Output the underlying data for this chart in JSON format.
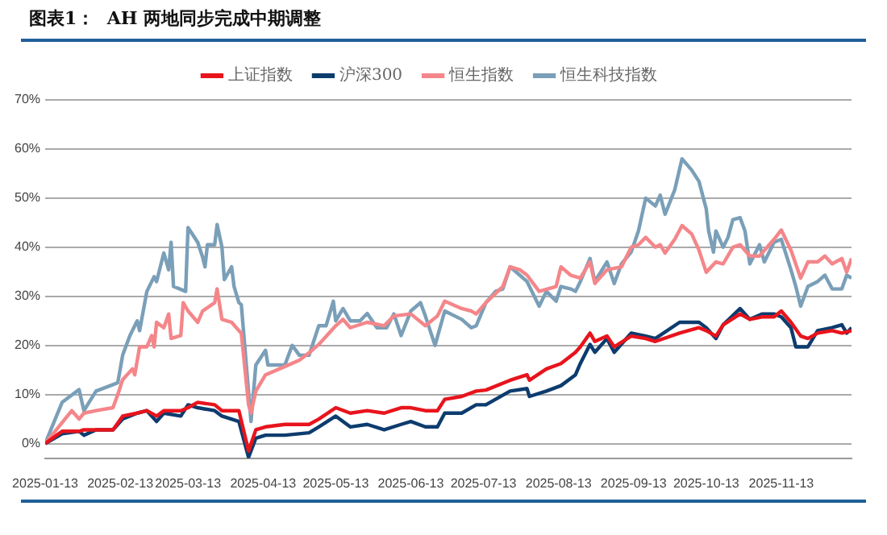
{
  "chart_data": {
    "type": "line",
    "title": "图表1：  AH 两地同步完成中期调整",
    "xlim": [
      "2025-01-13",
      "2025-12-12"
    ],
    "xticks": [
      "2025-01-13",
      "2025-02-13",
      "2025-03-13",
      "2025-04-13",
      "2025-05-13",
      "2025-06-13",
      "2025-07-13",
      "2025-08-13",
      "2025-09-13",
      "2025-10-13",
      "2025-11-13"
    ],
    "ylim": [
      -3,
      70
    ],
    "yticks": [
      {
        "value": 0,
        "label": "0%"
      },
      {
        "value": 10,
        "label": "10%"
      },
      {
        "value": 20,
        "label": "20%"
      },
      {
        "value": 30,
        "label": "30%"
      },
      {
        "value": 40,
        "label": "40%"
      },
      {
        "value": 50,
        "label": "50%"
      },
      {
        "value": 60,
        "label": "60%"
      },
      {
        "value": 70,
        "label": "70%"
      }
    ],
    "grid": "y",
    "legend": "top",
    "marker": "none",
    "line_style": "solid",
    "series": [
      {
        "name": "上证指数",
        "color": "#e8141c",
        "x": [
          "2025-01-13",
          "2025-01-20",
          "2025-01-27",
          "2025-01-29",
          "2025-02-03",
          "2025-02-10",
          "2025-02-14",
          "2025-02-20",
          "2025-02-24",
          "2025-02-28",
          "2025-03-03",
          "2025-03-10",
          "2025-03-13",
          "2025-03-17",
          "2025-03-24",
          "2025-03-27",
          "2025-04-03",
          "2025-04-07",
          "2025-04-10",
          "2025-04-14",
          "2025-04-22",
          "2025-05-02",
          "2025-05-06",
          "2025-05-13",
          "2025-05-19",
          "2025-05-26",
          "2025-06-02",
          "2025-06-09",
          "2025-06-13",
          "2025-06-19",
          "2025-06-24",
          "2025-06-27",
          "2025-07-04",
          "2025-07-10",
          "2025-07-14",
          "2025-07-24",
          "2025-07-31",
          "2025-08-01",
          "2025-08-08",
          "2025-08-14",
          "2025-08-20",
          "2025-08-22",
          "2025-08-26",
          "2025-08-28",
          "2025-09-02",
          "2025-09-05",
          "2025-09-12",
          "2025-09-18",
          "2025-09-22",
          "2025-10-02",
          "2025-10-10",
          "2025-10-13",
          "2025-10-17",
          "2025-10-20",
          "2025-10-27",
          "2025-10-31",
          "2025-11-05",
          "2025-11-10",
          "2025-11-13",
          "2025-11-17",
          "2025-11-21",
          "2025-11-24",
          "2025-11-28",
          "2025-12-04",
          "2025-12-08",
          "2025-12-12"
        ],
        "values": [
          0,
          2.5,
          2.5,
          2.8,
          2.8,
          2.8,
          5.6,
          6.2,
          6.7,
          5.6,
          6.7,
          6.7,
          7.3,
          8.4,
          7.9,
          6.7,
          6.7,
          -1.5,
          2.8,
          3.4,
          3.9,
          3.9,
          5,
          7.3,
          6.2,
          6.7,
          6.2,
          7.3,
          7.3,
          6.7,
          6.7,
          9,
          9.6,
          10.7,
          10.9,
          12.9,
          14,
          12.9,
          15.2,
          16.3,
          18.6,
          19.7,
          22.5,
          20.8,
          21.9,
          19.7,
          21.9,
          21.4,
          20.8,
          22.5,
          23.6,
          23,
          21.9,
          24.2,
          26.4,
          25.3,
          25.8,
          25.8,
          27,
          24.7,
          21.9,
          21.4,
          22.5,
          23,
          22.5,
          23
        ]
      },
      {
        "name": "沪深300",
        "color": "#0d3c6e",
        "x": [
          "2025-01-13",
          "2025-01-20",
          "2025-01-27",
          "2025-01-29",
          "2025-02-03",
          "2025-02-10",
          "2025-02-14",
          "2025-02-20",
          "2025-02-24",
          "2025-02-28",
          "2025-03-03",
          "2025-03-10",
          "2025-03-13",
          "2025-03-17",
          "2025-03-24",
          "2025-03-27",
          "2025-04-03",
          "2025-04-07",
          "2025-04-10",
          "2025-04-14",
          "2025-04-22",
          "2025-05-02",
          "2025-05-06",
          "2025-05-13",
          "2025-05-19",
          "2025-05-26",
          "2025-06-02",
          "2025-06-09",
          "2025-06-13",
          "2025-06-19",
          "2025-06-24",
          "2025-06-27",
          "2025-07-04",
          "2025-07-10",
          "2025-07-14",
          "2025-07-24",
          "2025-07-31",
          "2025-08-01",
          "2025-08-08",
          "2025-08-14",
          "2025-08-20",
          "2025-08-22",
          "2025-08-26",
          "2025-08-28",
          "2025-09-02",
          "2025-09-05",
          "2025-09-12",
          "2025-09-18",
          "2025-09-22",
          "2025-10-02",
          "2025-10-10",
          "2025-10-13",
          "2025-10-17",
          "2025-10-20",
          "2025-10-27",
          "2025-10-31",
          "2025-11-05",
          "2025-11-10",
          "2025-11-13",
          "2025-11-17",
          "2025-11-19",
          "2025-11-24",
          "2025-11-28",
          "2025-12-04",
          "2025-12-08",
          "2025-12-10",
          "2025-12-12"
        ],
        "values": [
          0,
          2,
          2.5,
          1.7,
          2.8,
          2.8,
          5,
          6.2,
          6.7,
          4.5,
          6.2,
          5.6,
          7.9,
          7.3,
          6.7,
          5.6,
          4.5,
          -2.8,
          1.1,
          1.7,
          1.7,
          2.2,
          3.4,
          5.6,
          3.4,
          3.9,
          2.8,
          3.9,
          4.5,
          3.4,
          3.4,
          6.2,
          6.2,
          7.9,
          7.9,
          10.7,
          11.2,
          9.6,
          10.7,
          11.8,
          14,
          16.3,
          20.2,
          18.6,
          21.4,
          18.6,
          22.5,
          21.9,
          21.4,
          24.7,
          24.7,
          23.6,
          21.4,
          24.2,
          27.5,
          25.3,
          26.4,
          26.4,
          25.8,
          23.6,
          19.7,
          19.7,
          23,
          23.6,
          24.2,
          22.5,
          23.6
        ]
      },
      {
        "name": "恒生指数",
        "color": "#f4868a",
        "x": [
          "2025-01-13",
          "2025-01-24",
          "2025-01-27",
          "2025-01-29",
          "2025-02-03",
          "2025-02-10",
          "2025-02-12",
          "2025-02-14",
          "2025-02-18",
          "2025-02-19",
          "2025-02-21",
          "2025-02-24",
          "2025-02-26",
          "2025-02-27",
          "2025-02-28",
          "2025-03-03",
          "2025-03-05",
          "2025-03-06",
          "2025-03-10",
          "2025-03-11",
          "2025-03-13",
          "2025-03-17",
          "2025-03-19",
          "2025-03-24",
          "2025-03-25",
          "2025-03-27",
          "2025-03-31",
          "2025-04-03",
          "2025-04-04",
          "2025-04-07",
          "2025-04-08",
          "2025-04-10",
          "2025-04-14",
          "2025-04-22",
          "2025-04-28",
          "2025-05-02",
          "2025-05-06",
          "2025-05-13",
          "2025-05-16",
          "2025-05-19",
          "2025-05-26",
          "2025-06-02",
          "2025-06-06",
          "2025-06-13",
          "2025-06-19",
          "2025-06-24",
          "2025-06-27",
          "2025-07-04",
          "2025-07-08",
          "2025-07-10",
          "2025-07-14",
          "2025-07-21",
          "2025-07-24",
          "2025-07-28",
          "2025-07-31",
          "2025-08-05",
          "2025-08-12",
          "2025-08-14",
          "2025-08-18",
          "2025-08-22",
          "2025-08-26",
          "2025-08-28",
          "2025-09-02",
          "2025-09-08",
          "2025-09-12",
          "2025-09-15",
          "2025-09-18",
          "2025-09-22",
          "2025-09-24",
          "2025-09-26",
          "2025-09-30",
          "2025-10-03",
          "2025-10-07",
          "2025-10-10",
          "2025-10-13",
          "2025-10-17",
          "2025-10-20",
          "2025-10-24",
          "2025-10-27",
          "2025-10-31",
          "2025-11-04",
          "2025-11-10",
          "2025-11-13",
          "2025-11-17",
          "2025-11-21",
          "2025-11-24",
          "2025-11-28",
          "2025-12-01",
          "2025-12-04",
          "2025-12-08",
          "2025-12-10",
          "2025-12-12"
        ],
        "values": [
          0,
          6.7,
          5,
          6.2,
          6.7,
          7.3,
          10,
          13,
          15.2,
          14,
          19.7,
          19.7,
          22,
          19.7,
          24.7,
          23.6,
          26.4,
          21.4,
          22,
          28.7,
          27,
          24.7,
          27,
          28.7,
          31.5,
          25.3,
          24.7,
          23,
          22.5,
          7.9,
          6.2,
          10.7,
          14,
          15.7,
          17,
          18.5,
          20.2,
          24,
          25.3,
          23.6,
          24.7,
          24,
          26,
          26.4,
          24,
          26,
          29,
          27.5,
          27,
          26.4,
          28.7,
          32,
          36,
          35.4,
          34.3,
          31,
          32,
          36,
          34.3,
          33.7,
          37,
          32.6,
          35.4,
          36,
          40,
          40.5,
          42,
          40,
          40.5,
          38.8,
          41.6,
          44.4,
          42.7,
          39.4,
          34.9,
          37,
          36.6,
          40,
          40.5,
          38.2,
          38.2,
          41.6,
          43.5,
          39.4,
          33.7,
          37,
          37,
          38.2,
          36.6,
          37.7,
          34.9,
          37.7
        ]
      },
      {
        "name": "恒生科技指数",
        "color": "#7a9fb8",
        "x": [
          "2025-01-13",
          "2025-01-20",
          "2025-01-27",
          "2025-01-29",
          "2025-02-03",
          "2025-02-10",
          "2025-02-12",
          "2025-02-14",
          "2025-02-17",
          "2025-02-20",
          "2025-02-21",
          "2025-02-24",
          "2025-02-27",
          "2025-02-28",
          "2025-03-03",
          "2025-03-05",
          "2025-03-06",
          "2025-03-07",
          "2025-03-12",
          "2025-03-13",
          "2025-03-17",
          "2025-03-19",
          "2025-03-20",
          "2025-03-21",
          "2025-03-24",
          "2025-03-25",
          "2025-03-27",
          "2025-03-28",
          "2025-03-31",
          "2025-04-01",
          "2025-04-03",
          "2025-04-04",
          "2025-04-08",
          "2025-04-10",
          "2025-04-14",
          "2025-04-15",
          "2025-04-22",
          "2025-04-25",
          "2025-04-28",
          "2025-05-02",
          "2025-05-06",
          "2025-05-09",
          "2025-05-12",
          "2025-05-13",
          "2025-05-16",
          "2025-05-19",
          "2025-05-23",
          "2025-05-26",
          "2025-05-30",
          "2025-06-03",
          "2025-06-06",
          "2025-06-09",
          "2025-06-13",
          "2025-06-17",
          "2025-06-19",
          "2025-06-23",
          "2025-06-27",
          "2025-07-04",
          "2025-07-08",
          "2025-07-10",
          "2025-07-14",
          "2025-07-18",
          "2025-07-21",
          "2025-07-24",
          "2025-07-28",
          "2025-07-31",
          "2025-08-05",
          "2025-08-08",
          "2025-08-12",
          "2025-08-14",
          "2025-08-18",
          "2025-08-20",
          "2025-08-22",
          "2025-08-26",
          "2025-08-28",
          "2025-09-02",
          "2025-09-05",
          "2025-09-08",
          "2025-09-12",
          "2025-09-15",
          "2025-09-18",
          "2025-09-22",
          "2025-09-24",
          "2025-09-26",
          "2025-09-30",
          "2025-10-03",
          "2025-10-07",
          "2025-10-10",
          "2025-10-13",
          "2025-10-14",
          "2025-10-16",
          "2025-10-17",
          "2025-10-20",
          "2025-10-22",
          "2025-10-24",
          "2025-10-27",
          "2025-10-29",
          "2025-10-31",
          "2025-11-04",
          "2025-11-06",
          "2025-11-10",
          "2025-11-13",
          "2025-11-17",
          "2025-11-19",
          "2025-11-21",
          "2025-11-24",
          "2025-11-28",
          "2025-12-01",
          "2025-12-04",
          "2025-12-08",
          "2025-12-10",
          "2025-12-12"
        ],
        "values": [
          0,
          8.4,
          11,
          6.7,
          10.7,
          12,
          12.4,
          18,
          22,
          25,
          23,
          31,
          34,
          33,
          38.8,
          35.4,
          41,
          32,
          31,
          44,
          41,
          38,
          36,
          40.5,
          40.5,
          44.6,
          40,
          33.4,
          36,
          32,
          28.7,
          28.3,
          4.5,
          16,
          19,
          16,
          16,
          20,
          18,
          18,
          24,
          24,
          29,
          25,
          27.5,
          25,
          25,
          26.5,
          23.6,
          23.6,
          26.4,
          22,
          27,
          28.7,
          26,
          20,
          27,
          25.3,
          23.6,
          24,
          28.7,
          31,
          31.5,
          36,
          34.3,
          33,
          28,
          31,
          29,
          32,
          31.5,
          31,
          33,
          37.7,
          33,
          37,
          32.6,
          36.6,
          39,
          43.3,
          50,
          48.4,
          50.6,
          46.7,
          51.7,
          58,
          55.7,
          53.4,
          47.8,
          43.3,
          39,
          43.3,
          40,
          42,
          45.6,
          46,
          43.3,
          36.6,
          40.5,
          37,
          41,
          41.6,
          35.4,
          32,
          28,
          32,
          33,
          34.3,
          31.5,
          31.5,
          34.3,
          33.7
        ]
      }
    ]
  }
}
